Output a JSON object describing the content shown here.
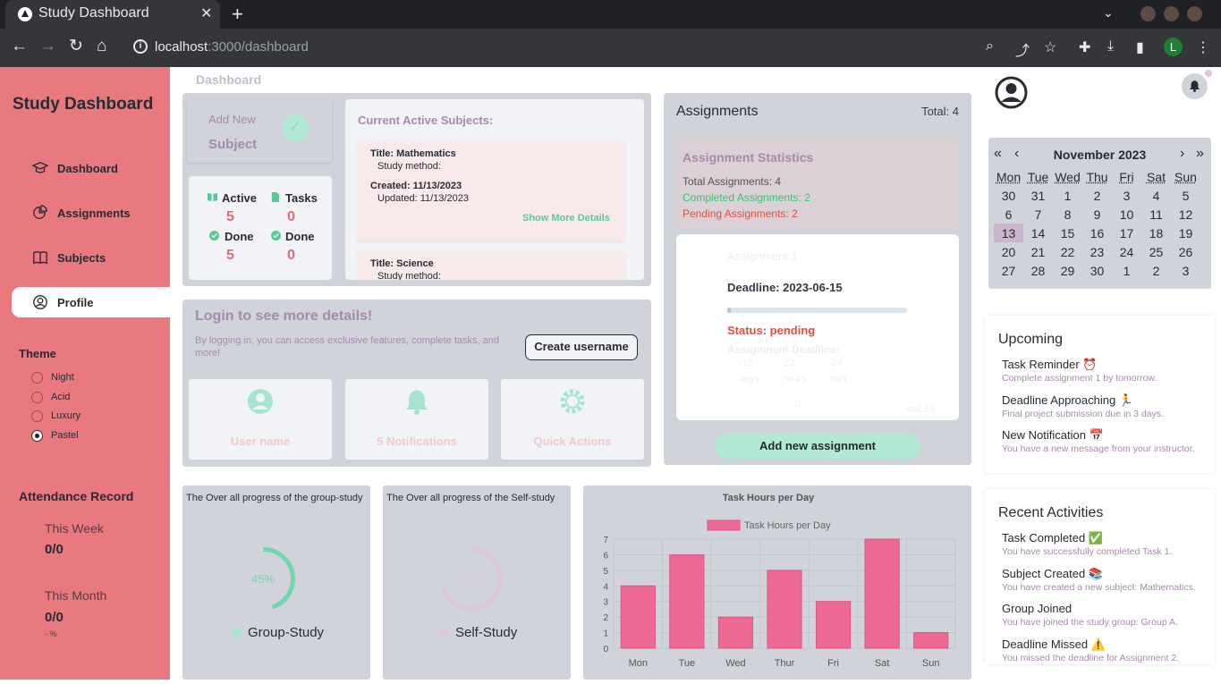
{
  "browser": {
    "tab_title": "Study Dashboard",
    "url_host": "localhost",
    "url_rest": ":3000/dashboard",
    "profile_initial": "L"
  },
  "sidebar": {
    "brand": "Study Dashboard",
    "nav": [
      {
        "label": "Dashboard",
        "icon": "graduation-cap-icon"
      },
      {
        "label": "Assignments",
        "icon": "pie-chart-icon"
      },
      {
        "label": "Subjects",
        "icon": "book-icon"
      },
      {
        "label": "Profile",
        "icon": "user-circle-icon",
        "active": true
      }
    ],
    "theme_title": "Theme",
    "themes": [
      "Night",
      "Acid",
      "Luxury",
      "Pastel"
    ],
    "selected_theme": "Pastel",
    "attendance_title": "Attendance Record",
    "this_week_label": "This Week",
    "this_week_value": "0/0",
    "this_month_label": "This Month",
    "this_month_value": "0/0",
    "pct_text": "- %"
  },
  "breadcrumb": "Dashboard",
  "add_subject": {
    "line1": "Add New",
    "line2": "Subject"
  },
  "stats": {
    "active_label": "Active",
    "active_value": "5",
    "tasks_label": "Tasks",
    "tasks_value": "0",
    "done_label": "Done",
    "done_value": "5",
    "done2_label": "Done",
    "done2_value": "0"
  },
  "subjects": {
    "title": "Current Active Subjects:",
    "items": [
      {
        "title": "Title: Mathematics",
        "method": "Study method:",
        "created": "Created: 11/13/2023",
        "updated": "Updated: 11/13/2023",
        "more": "Show More Details"
      },
      {
        "title": "Title: Science",
        "method": "Study method:"
      }
    ]
  },
  "login": {
    "title": "Login to see more details!",
    "desc": "By logging in, you can access exclusive features, complete tasks, and more!",
    "button": "Create username"
  },
  "quick_cards": [
    {
      "label": "User name",
      "icon": "user-icon"
    },
    {
      "label": "5 Notifications",
      "icon": "bell-icon"
    },
    {
      "label": "Quick Actions",
      "icon": "gear-icon"
    }
  ],
  "assignments": {
    "title": "Assignments",
    "total": "Total: 4",
    "stats_title": "Assignment Statistics",
    "total_line": "Total Assignments: 4",
    "completed_line": "Completed Assignments: 2",
    "pending_line": "Pending Assignments: 2",
    "card": {
      "name": "Assignment 1",
      "deadline": "Deadline: 2023-06-15",
      "progress": 0.02,
      "status": "Status: pending",
      "countdown_label": "Assignment Deadline:",
      "days_val": "-15",
      "days_lbl": "days",
      "hours_val": "23",
      "hours_lbl": "hours",
      "min_val": "-24",
      "min_lbl": "min",
      "page_num": "0",
      "corner": "sec 59"
    },
    "add_button": "Add new assignment"
  },
  "progress": {
    "group_title": "The Over all progress of the group-study",
    "group_pct": "45%",
    "group_value": 0.45,
    "group_legend": "Group-Study",
    "self_title": "The Over all progress of the Self-study",
    "self_pct": "70%",
    "self_value": 0.7,
    "self_legend": "Self-Study"
  },
  "chart_data": {
    "type": "bar",
    "title": "Task Hours per Day",
    "legend": [
      "Task Hours per Day"
    ],
    "categories": [
      "Mon",
      "Tue",
      "Wed",
      "Thur",
      "Fri",
      "Sat",
      "Sun"
    ],
    "series": [
      {
        "name": "Task Hours per Day",
        "values": [
          4,
          6,
          2,
          5,
          3,
          7,
          1
        ]
      }
    ],
    "ylim": [
      0,
      7
    ],
    "yticks": [
      0,
      1,
      2,
      3,
      4,
      5,
      6,
      7
    ],
    "grid": true,
    "legend_position": "top",
    "bar_color": "#ee6a95"
  },
  "calendar": {
    "month": "November 2023",
    "prev2": "«",
    "prev": "‹",
    "next": "›",
    "next2": "»",
    "weekdays": [
      "Mon",
      "Tue",
      "Wed",
      "Thu",
      "Fri",
      "Sat",
      "Sun"
    ],
    "weeks": [
      [
        "30",
        "31",
        "1",
        "2",
        "3",
        "4",
        "5"
      ],
      [
        "6",
        "7",
        "8",
        "9",
        "10",
        "11",
        "12"
      ],
      [
        "13",
        "14",
        "15",
        "16",
        "17",
        "18",
        "19"
      ],
      [
        "20",
        "21",
        "22",
        "23",
        "24",
        "25",
        "26"
      ],
      [
        "27",
        "28",
        "29",
        "30",
        "1",
        "2",
        "3"
      ]
    ],
    "today": "13"
  },
  "upcoming": {
    "title": "Upcoming",
    "items": [
      {
        "title": "Task Reminder ⏰",
        "desc": "Complete assignment 1 by tomorrow."
      },
      {
        "title": "Deadline Approaching 🏃",
        "desc": "Final project submission due in 3 days."
      },
      {
        "title": "New Notification 📅",
        "desc": "You have a new message from your instructor."
      }
    ]
  },
  "recent": {
    "title": "Recent Activities",
    "items": [
      {
        "title": "Task Completed ✅",
        "desc": "You have successfully completed Task 1."
      },
      {
        "title": "Subject Created 📚",
        "desc": "You have created a new subject: Mathematics."
      },
      {
        "title": "Group Joined",
        "desc": "You have joined the study group: Group A."
      },
      {
        "title": "Deadline Missed ⚠️",
        "desc": "You missed the deadline for Assignment 2."
      }
    ]
  }
}
